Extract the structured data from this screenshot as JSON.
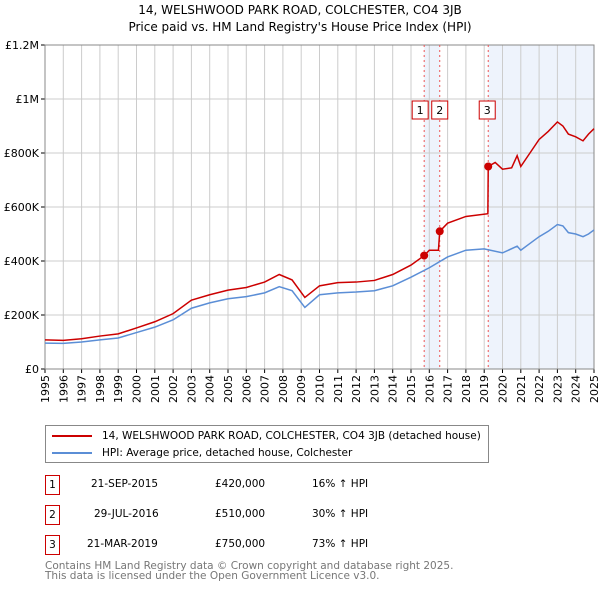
{
  "title": {
    "line1": "14, WELSHWOOD PARK ROAD, COLCHESTER, CO4 3JB",
    "line2": "Price paid vs. HM Land Registry's House Price Index (HPI)"
  },
  "chart_data": {
    "type": "line",
    "title": "14, WELSHWOOD PARK ROAD, COLCHESTER, CO4 3JB — Price paid vs. HM Land Registry's House Price Index (HPI)",
    "xlim": [
      1995,
      2025
    ],
    "ylim": [
      0,
      1200000
    ],
    "x_ticks": [
      "1995",
      "1996",
      "1997",
      "1998",
      "1999",
      "2000",
      "2001",
      "2002",
      "2003",
      "2004",
      "2005",
      "2006",
      "2007",
      "2008",
      "2009",
      "2010",
      "2011",
      "2012",
      "2013",
      "2014",
      "2015",
      "2016",
      "2017",
      "2018",
      "2019",
      "2020",
      "2021",
      "2022",
      "2023",
      "2024",
      "2025"
    ],
    "y_ticks": [
      {
        "v": 0,
        "label": "£0"
      },
      {
        "v": 200000,
        "label": "£200K"
      },
      {
        "v": 400000,
        "label": "£400K"
      },
      {
        "v": 600000,
        "label": "£600K"
      },
      {
        "v": 800000,
        "label": "£800K"
      },
      {
        "v": 1000000,
        "label": "£1M"
      },
      {
        "v": 1200000,
        "label": "£1.2M"
      }
    ],
    "grid": true,
    "series": [
      {
        "name": "14, WELSHWOOD PARK ROAD, COLCHESTER, CO4 3JB (detached house)",
        "color": "#cc0000",
        "x": [
          1995,
          1996,
          1997,
          1998,
          1999,
          2000,
          2001,
          2002,
          2003,
          2004,
          2005,
          2006,
          2007,
          2007.8,
          2008.5,
          2009.2,
          2010,
          2011,
          2012,
          2013,
          2014,
          2015,
          2015.72,
          2016,
          2016.5,
          2016.57,
          2017,
          2018,
          2019.2,
          2019.22,
          2019.6,
          2020,
          2020.5,
          2020.8,
          2021,
          2021.5,
          2022,
          2022.5,
          2023,
          2023.3,
          2023.6,
          2024,
          2024.4,
          2024.7,
          2025
        ],
        "y": [
          108000,
          106000,
          112000,
          122000,
          130000,
          152000,
          175000,
          205000,
          255000,
          275000,
          292000,
          302000,
          322000,
          350000,
          330000,
          265000,
          308000,
          320000,
          322000,
          328000,
          350000,
          385000,
          420000,
          440000,
          440000,
          510000,
          540000,
          565000,
          575000,
          750000,
          765000,
          740000,
          745000,
          790000,
          750000,
          800000,
          850000,
          880000,
          915000,
          900000,
          870000,
          860000,
          845000,
          870000,
          890000
        ]
      },
      {
        "name": "HPI: Average price, detached house, Colchester",
        "color": "#5b8ed6",
        "x": [
          1995,
          1996,
          1997,
          1998,
          1999,
          2000,
          2001,
          2002,
          2003,
          2004,
          2005,
          2006,
          2007,
          2007.8,
          2008.5,
          2009.2,
          2010,
          2011,
          2012,
          2013,
          2014,
          2015,
          2016,
          2017,
          2018,
          2019,
          2020,
          2020.8,
          2021,
          2021.5,
          2022,
          2022.5,
          2023,
          2023.3,
          2023.6,
          2024,
          2024.4,
          2024.7,
          2025
        ],
        "y": [
          96000,
          95000,
          100000,
          108000,
          115000,
          135000,
          155000,
          182000,
          225000,
          245000,
          260000,
          268000,
          282000,
          305000,
          290000,
          228000,
          275000,
          282000,
          285000,
          290000,
          308000,
          340000,
          375000,
          415000,
          440000,
          445000,
          430000,
          455000,
          440000,
          465000,
          490000,
          510000,
          535000,
          530000,
          505000,
          500000,
          490000,
          500000,
          515000
        ]
      }
    ],
    "sales": [
      {
        "id": "1",
        "date": "21-SEP-2015",
        "price": "£420,000",
        "hpi": "16% ↑ HPI",
        "x": 2015.72,
        "y": 420000
      },
      {
        "id": "2",
        "date": "29-JUL-2016",
        "price": "£510,000",
        "hpi": "30% ↑ HPI",
        "x": 2016.57,
        "y": 510000
      },
      {
        "id": "3",
        "date": "21-MAR-2019",
        "price": "£750,000",
        "hpi": "73% ↑ HPI",
        "x": 2019.22,
        "y": 750000
      }
    ]
  },
  "legend": {
    "red": "14, WELSHWOOD PARK ROAD, COLCHESTER, CO4 3JB (detached house)",
    "blue": "HPI: Average price, detached house, Colchester"
  },
  "footer": {
    "line1": "Contains HM Land Registry data © Crown copyright and database right 2025.",
    "line2": "This data is licensed under the Open Government Licence v3.0."
  }
}
